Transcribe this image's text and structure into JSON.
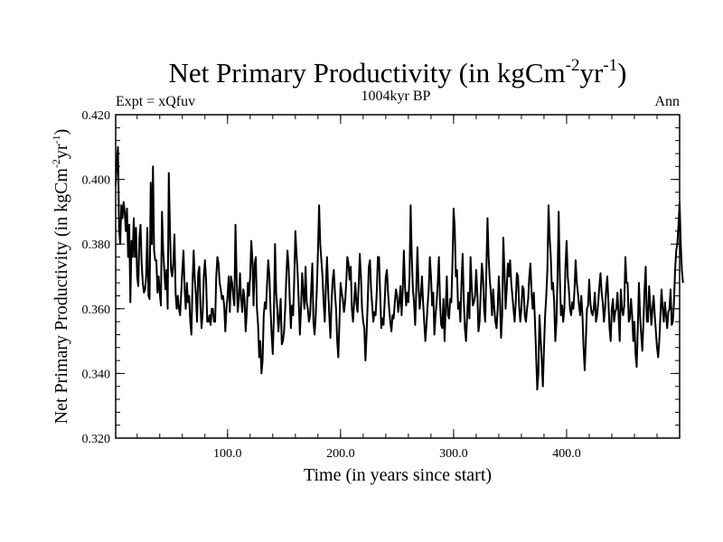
{
  "chart_data": {
    "type": "line",
    "title_main": "Net Primary Productivity (in kgCm",
    "title_exp1": "-2",
    "title_mid": "yr",
    "title_exp2": "-1",
    "title_close": ")",
    "subtitle": "1004kyr BP",
    "left_label": "Expt = xQfuv",
    "right_label": "Ann",
    "xlabel": "Time (in years since start)",
    "ylabel_main": "Net Primary Productivity (in kgCm",
    "ylabel_exp1": "-2",
    "ylabel_mid": "yr",
    "ylabel_exp2": "-1",
    "ylabel_close": ")",
    "xlim": [
      1,
      500
    ],
    "ylim": [
      0.32,
      0.42
    ],
    "x_ticks": [
      100,
      200,
      300,
      400
    ],
    "x_tick_labels": [
      "100.0",
      "200.0",
      "300.0",
      "400.0"
    ],
    "y_ticks": [
      0.32,
      0.34,
      0.36,
      0.38,
      0.4,
      0.42
    ],
    "y_tick_labels": [
      "0.320",
      "0.340",
      "0.360",
      "0.380",
      "0.400",
      "0.420"
    ],
    "series": [
      {
        "name": "Net Primary Productivity",
        "x_start": 1,
        "x_step": 1,
        "values": [
          0.398,
          0.405,
          0.41,
          0.385,
          0.38,
          0.392,
          0.388,
          0.393,
          0.39,
          0.384,
          0.391,
          0.376,
          0.386,
          0.362,
          0.381,
          0.376,
          0.388,
          0.376,
          0.385,
          0.37,
          0.367,
          0.382,
          0.386,
          0.374,
          0.368,
          0.365,
          0.366,
          0.37,
          0.385,
          0.364,
          0.363,
          0.399,
          0.38,
          0.404,
          0.378,
          0.375,
          0.375,
          0.365,
          0.37,
          0.365,
          0.361,
          0.39,
          0.378,
          0.372,
          0.366,
          0.372,
          0.36,
          0.402,
          0.385,
          0.372,
          0.37,
          0.374,
          0.383,
          0.365,
          0.36,
          0.364,
          0.36,
          0.358,
          0.365,
          0.372,
          0.378,
          0.366,
          0.36,
          0.368,
          0.362,
          0.364,
          0.356,
          0.352,
          0.368,
          0.378,
          0.369,
          0.364,
          0.356,
          0.371,
          0.373,
          0.361,
          0.354,
          0.359,
          0.37,
          0.375,
          0.369,
          0.356,
          0.356,
          0.358,
          0.355,
          0.36,
          0.36,
          0.356,
          0.356,
          0.37,
          0.376,
          0.374,
          0.368,
          0.366,
          0.363,
          0.364,
          0.361,
          0.353,
          0.36,
          0.364,
          0.37,
          0.359,
          0.37,
          0.368,
          0.364,
          0.361,
          0.386,
          0.37,
          0.359,
          0.363,
          0.371,
          0.363,
          0.359,
          0.366,
          0.363,
          0.353,
          0.359,
          0.368,
          0.364,
          0.37,
          0.381,
          0.375,
          0.361,
          0.374,
          0.376,
          0.36,
          0.355,
          0.345,
          0.35,
          0.34,
          0.344,
          0.358,
          0.362,
          0.36,
          0.368,
          0.375,
          0.37,
          0.36,
          0.352,
          0.346,
          0.358,
          0.38,
          0.365,
          0.36,
          0.353,
          0.358,
          0.363,
          0.349,
          0.35,
          0.353,
          0.36,
          0.37,
          0.378,
          0.373,
          0.363,
          0.354,
          0.361,
          0.358,
          0.369,
          0.384,
          0.377,
          0.371,
          0.362,
          0.352,
          0.36,
          0.371,
          0.365,
          0.36,
          0.373,
          0.362,
          0.36,
          0.356,
          0.358,
          0.366,
          0.374,
          0.356,
          0.352,
          0.358,
          0.366,
          0.378,
          0.392,
          0.38,
          0.375,
          0.37,
          0.362,
          0.356,
          0.367,
          0.376,
          0.366,
          0.358,
          0.351,
          0.362,
          0.369,
          0.372,
          0.365,
          0.36,
          0.35,
          0.345,
          0.356,
          0.368,
          0.365,
          0.363,
          0.359,
          0.362,
          0.368,
          0.376,
          0.374,
          0.369,
          0.373,
          0.36,
          0.356,
          0.362,
          0.368,
          0.362,
          0.359,
          0.367,
          0.377,
          0.37,
          0.36,
          0.356,
          0.354,
          0.344,
          0.352,
          0.362,
          0.373,
          0.375,
          0.366,
          0.361,
          0.356,
          0.359,
          0.358,
          0.365,
          0.376,
          0.376,
          0.365,
          0.354,
          0.357,
          0.355,
          0.362,
          0.37,
          0.372,
          0.365,
          0.36,
          0.356,
          0.353,
          0.358,
          0.357,
          0.362,
          0.366,
          0.364,
          0.359,
          0.362,
          0.367,
          0.358,
          0.366,
          0.378,
          0.367,
          0.361,
          0.365,
          0.362,
          0.37,
          0.392,
          0.376,
          0.366,
          0.362,
          0.355,
          0.366,
          0.379,
          0.367,
          0.36,
          0.364,
          0.37,
          0.362,
          0.356,
          0.35,
          0.355,
          0.361,
          0.366,
          0.376,
          0.37,
          0.361,
          0.365,
          0.352,
          0.358,
          0.362,
          0.368,
          0.376,
          0.362,
          0.355,
          0.354,
          0.363,
          0.35,
          0.36,
          0.37,
          0.358,
          0.357,
          0.363,
          0.362,
          0.374,
          0.391,
          0.385,
          0.37,
          0.372,
          0.36,
          0.362,
          0.356,
          0.368,
          0.377,
          0.363,
          0.354,
          0.35,
          0.358,
          0.365,
          0.357,
          0.376,
          0.367,
          0.361,
          0.362,
          0.364,
          0.372,
          0.365,
          0.353,
          0.356,
          0.365,
          0.374,
          0.37,
          0.36,
          0.356,
          0.372,
          0.388,
          0.376,
          0.369,
          0.365,
          0.358,
          0.366,
          0.36,
          0.356,
          0.354,
          0.36,
          0.37,
          0.363,
          0.351,
          0.358,
          0.382,
          0.372,
          0.36,
          0.366,
          0.374,
          0.37,
          0.375,
          0.368,
          0.364,
          0.36,
          0.356,
          0.362,
          0.371,
          0.37,
          0.361,
          0.356,
          0.36,
          0.367,
          0.366,
          0.358,
          0.356,
          0.36,
          0.363,
          0.37,
          0.374,
          0.365,
          0.36,
          0.365,
          0.356,
          0.346,
          0.335,
          0.34,
          0.358,
          0.351,
          0.344,
          0.336,
          0.348,
          0.358,
          0.364,
          0.372,
          0.392,
          0.382,
          0.376,
          0.366,
          0.368,
          0.362,
          0.35,
          0.356,
          0.37,
          0.39,
          0.37,
          0.358,
          0.361,
          0.356,
          0.36,
          0.373,
          0.381,
          0.37,
          0.366,
          0.36,
          0.358,
          0.362,
          0.36,
          0.366,
          0.375,
          0.368,
          0.365,
          0.361,
          0.358,
          0.364,
          0.358,
          0.348,
          0.341,
          0.35,
          0.36,
          0.361,
          0.369,
          0.362,
          0.359,
          0.358,
          0.36,
          0.365,
          0.356,
          0.358,
          0.362,
          0.367,
          0.371,
          0.365,
          0.362,
          0.356,
          0.36,
          0.366,
          0.37,
          0.362,
          0.354,
          0.35,
          0.36,
          0.363,
          0.356,
          0.359,
          0.36,
          0.365,
          0.358,
          0.35,
          0.366,
          0.36,
          0.358,
          0.361,
          0.376,
          0.368,
          0.368,
          0.356,
          0.357,
          0.363,
          0.358,
          0.35,
          0.356,
          0.346,
          0.342,
          0.354,
          0.368,
          0.358,
          0.352,
          0.347,
          0.356,
          0.366,
          0.373,
          0.356,
          0.356,
          0.367,
          0.361,
          0.355,
          0.36,
          0.364,
          0.358,
          0.353,
          0.348,
          0.345,
          0.35,
          0.358,
          0.366,
          0.36,
          0.356,
          0.362,
          0.358,
          0.354,
          0.359,
          0.36,
          0.366,
          0.355,
          0.356,
          0.362,
          0.372,
          0.378,
          0.38,
          0.386,
          0.393,
          0.38,
          0.372,
          0.368
        ]
      }
    ]
  },
  "colors": {
    "background": "#ffffff",
    "line": "#000000",
    "axes": "#000000"
  }
}
